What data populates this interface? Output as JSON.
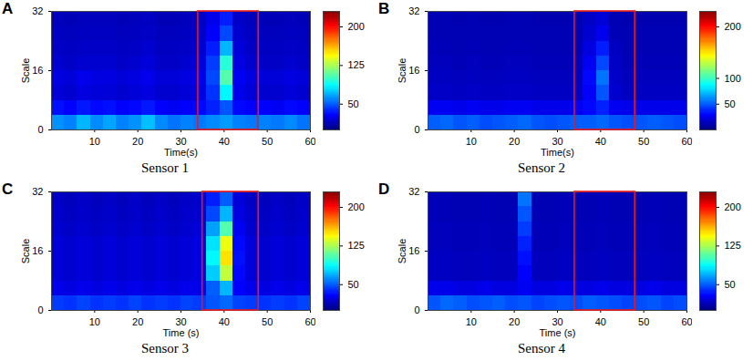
{
  "chart_data": [
    {
      "type": "heatmap",
      "panel_label": "A",
      "caption": "Sensor 1",
      "xlabel": "Time(s)",
      "ylabel": "Scale",
      "xlim": [
        0,
        60
      ],
      "xticks": [
        10,
        20,
        30,
        40,
        50,
        60
      ],
      "ylim": [
        0,
        32
      ],
      "yticks": [
        0,
        16,
        32
      ],
      "time_edges": [
        0,
        3,
        6,
        9,
        12,
        15,
        18,
        21,
        24,
        27,
        30,
        33,
        36,
        39,
        42,
        45,
        48,
        51,
        54,
        57,
        60
      ],
      "scale_edges": [
        0,
        4,
        8,
        12,
        16,
        20,
        24,
        28,
        32
      ],
      "cells": [
        [
          62,
          58,
          70,
          60,
          66,
          58,
          62,
          72,
          60,
          55,
          58,
          56,
          60,
          64,
          58,
          56,
          58,
          56,
          60,
          55
        ],
        [
          32,
          28,
          34,
          30,
          32,
          28,
          30,
          34,
          28,
          26,
          28,
          30,
          36,
          48,
          30,
          28,
          28,
          26,
          30,
          28
        ],
        [
          20,
          18,
          22,
          20,
          20,
          18,
          20,
          22,
          18,
          18,
          20,
          22,
          40,
          85,
          24,
          20,
          18,
          18,
          20,
          18
        ],
        [
          22,
          20,
          24,
          22,
          22,
          20,
          22,
          24,
          20,
          20,
          22,
          24,
          45,
          105,
          26,
          22,
          20,
          20,
          22,
          20
        ],
        [
          18,
          16,
          18,
          18,
          18,
          16,
          18,
          20,
          16,
          16,
          18,
          20,
          42,
          95,
          22,
          18,
          16,
          16,
          18,
          16
        ],
        [
          16,
          15,
          16,
          16,
          16,
          15,
          16,
          18,
          15,
          15,
          16,
          18,
          35,
          70,
          20,
          16,
          15,
          15,
          16,
          15
        ],
        [
          15,
          14,
          15,
          15,
          15,
          14,
          15,
          16,
          14,
          14,
          15,
          16,
          28,
          45,
          18,
          15,
          14,
          14,
          15,
          14
        ],
        [
          14,
          13,
          14,
          14,
          14,
          13,
          14,
          15,
          13,
          13,
          14,
          15,
          24,
          35,
          16,
          14,
          13,
          13,
          14,
          13
        ]
      ],
      "colorbar_lim": [
        0,
        230
      ],
      "colorbar_ticks": [
        50,
        125,
        200
      ],
      "highlight": [
        34,
        48
      ]
    },
    {
      "type": "heatmap",
      "panel_label": "B",
      "caption": "Sensor 2",
      "xlabel": "Time(s)",
      "ylabel": "Scale",
      "xlim": [
        0,
        60
      ],
      "xticks": [
        10,
        20,
        30,
        40,
        50,
        60
      ],
      "ylim": [
        0,
        32
      ],
      "yticks": [
        0,
        16,
        32
      ],
      "time_edges": [
        0,
        3,
        6,
        9,
        12,
        15,
        18,
        21,
        24,
        27,
        30,
        33,
        36,
        39,
        42,
        45,
        48,
        51,
        54,
        57,
        60
      ],
      "scale_edges": [
        0,
        4,
        8,
        12,
        16,
        20,
        24,
        28,
        32
      ],
      "cells": [
        [
          50,
          52,
          48,
          50,
          46,
          48,
          50,
          52,
          48,
          46,
          48,
          50,
          50,
          52,
          48,
          46,
          48,
          50,
          48,
          46
        ],
        [
          26,
          26,
          24,
          26,
          24,
          24,
          26,
          26,
          24,
          24,
          24,
          26,
          30,
          36,
          26,
          24,
          24,
          24,
          24,
          24
        ],
        [
          16,
          16,
          15,
          16,
          15,
          15,
          16,
          16,
          15,
          15,
          15,
          16,
          28,
          48,
          18,
          15,
          15,
          15,
          15,
          15
        ],
        [
          15,
          15,
          14,
          15,
          14,
          14,
          15,
          15,
          14,
          14,
          14,
          15,
          30,
          55,
          17,
          14,
          14,
          14,
          14,
          14
        ],
        [
          14,
          14,
          13,
          14,
          13,
          13,
          14,
          14,
          13,
          13,
          13,
          14,
          26,
          45,
          16,
          13,
          13,
          13,
          13,
          13
        ],
        [
          13,
          13,
          12,
          13,
          12,
          12,
          13,
          13,
          12,
          12,
          12,
          13,
          22,
          35,
          15,
          12,
          12,
          12,
          12,
          12
        ],
        [
          12,
          12,
          12,
          12,
          12,
          12,
          12,
          12,
          12,
          12,
          12,
          12,
          18,
          25,
          13,
          12,
          12,
          12,
          12,
          12
        ],
        [
          12,
          12,
          11,
          12,
          11,
          11,
          12,
          12,
          11,
          11,
          11,
          12,
          16,
          20,
          12,
          11,
          11,
          11,
          11,
          11
        ]
      ],
      "colorbar_lim": [
        0,
        230
      ],
      "colorbar_ticks": [
        50,
        100,
        200
      ],
      "highlight": [
        34,
        48
      ]
    },
    {
      "type": "heatmap",
      "panel_label": "C",
      "caption": "Sensor 3",
      "xlabel": "Time (s)",
      "ylabel": "Scale",
      "xlim": [
        0,
        60
      ],
      "xticks": [
        10,
        20,
        30,
        40,
        50,
        60
      ],
      "ylim": [
        0,
        32
      ],
      "yticks": [
        0,
        16,
        32
      ],
      "time_edges": [
        0,
        3,
        6,
        9,
        12,
        15,
        18,
        21,
        24,
        27,
        30,
        33,
        36,
        39,
        42,
        45,
        48,
        51,
        54,
        57,
        60
      ],
      "scale_edges": [
        0,
        4,
        8,
        12,
        16,
        20,
        24,
        28,
        32
      ],
      "cells": [
        [
          42,
          40,
          44,
          40,
          42,
          40,
          44,
          40,
          42,
          40,
          44,
          42,
          48,
          52,
          44,
          42,
          40,
          42,
          40,
          44
        ],
        [
          24,
          22,
          24,
          22,
          24,
          22,
          24,
          22,
          24,
          22,
          24,
          24,
          50,
          70,
          28,
          24,
          22,
          24,
          22,
          24
        ],
        [
          20,
          18,
          20,
          18,
          20,
          18,
          20,
          18,
          20,
          18,
          20,
          22,
          75,
          130,
          30,
          20,
          18,
          20,
          18,
          20
        ],
        [
          20,
          18,
          20,
          18,
          20,
          18,
          20,
          18,
          20,
          18,
          20,
          22,
          85,
          150,
          32,
          20,
          18,
          20,
          18,
          20
        ],
        [
          20,
          18,
          20,
          18,
          20,
          18,
          20,
          18,
          20,
          18,
          20,
          22,
          80,
          140,
          30,
          20,
          18,
          20,
          18,
          20
        ],
        [
          18,
          16,
          18,
          16,
          18,
          16,
          18,
          16,
          18,
          16,
          18,
          20,
          65,
          105,
          26,
          18,
          16,
          18,
          16,
          18
        ],
        [
          17,
          15,
          17,
          15,
          17,
          15,
          17,
          15,
          17,
          15,
          17,
          18,
          45,
          70,
          22,
          17,
          15,
          17,
          15,
          17
        ],
        [
          16,
          14,
          16,
          14,
          16,
          14,
          16,
          14,
          16,
          14,
          16,
          17,
          35,
          50,
          20,
          16,
          14,
          16,
          14,
          16
        ]
      ],
      "colorbar_lim": [
        0,
        230
      ],
      "colorbar_ticks": [
        50,
        125,
        200
      ],
      "highlight": [
        35,
        48
      ]
    },
    {
      "type": "heatmap",
      "panel_label": "D",
      "caption": "Sensor 4",
      "xlabel": "Time (s)",
      "ylabel": "Scale",
      "xlim": [
        0,
        60
      ],
      "xticks": [
        10,
        20,
        30,
        40,
        50,
        60
      ],
      "ylim": [
        0,
        32
      ],
      "yticks": [
        0,
        16,
        32
      ],
      "time_edges": [
        0,
        3,
        6,
        9,
        12,
        15,
        18,
        21,
        24,
        27,
        30,
        33,
        36,
        39,
        42,
        45,
        48,
        51,
        54,
        57,
        60
      ],
      "scale_edges": [
        0,
        4,
        8,
        12,
        16,
        20,
        24,
        28,
        32
      ],
      "cells": [
        [
          48,
          52,
          50,
          46,
          48,
          50,
          46,
          48,
          44,
          46,
          48,
          46,
          50,
          48,
          46,
          44,
          46,
          48,
          44,
          46
        ],
        [
          24,
          24,
          22,
          22,
          24,
          22,
          22,
          26,
          22,
          22,
          24,
          22,
          22,
          24,
          22,
          22,
          22,
          24,
          22,
          22
        ],
        [
          15,
          15,
          14,
          14,
          15,
          14,
          14,
          28,
          14,
          14,
          15,
          14,
          14,
          15,
          14,
          14,
          14,
          15,
          14,
          14
        ],
        [
          15,
          15,
          14,
          14,
          15,
          14,
          14,
          32,
          14,
          14,
          15,
          14,
          14,
          15,
          14,
          14,
          14,
          15,
          14,
          14
        ],
        [
          14,
          14,
          13,
          13,
          14,
          13,
          13,
          36,
          13,
          13,
          14,
          13,
          13,
          14,
          13,
          13,
          13,
          14,
          13,
          13
        ],
        [
          14,
          14,
          13,
          13,
          14,
          13,
          13,
          42,
          13,
          13,
          14,
          13,
          13,
          14,
          13,
          13,
          13,
          14,
          13,
          13
        ],
        [
          13,
          13,
          12,
          12,
          13,
          12,
          12,
          48,
          12,
          12,
          13,
          12,
          12,
          13,
          12,
          12,
          12,
          13,
          12,
          12
        ],
        [
          13,
          13,
          12,
          12,
          13,
          12,
          12,
          55,
          12,
          12,
          13,
          12,
          12,
          13,
          12,
          12,
          12,
          13,
          12,
          12
        ]
      ],
      "colorbar_lim": [
        0,
        230
      ],
      "colorbar_ticks": [
        50,
        125,
        200
      ],
      "highlight": [
        34,
        48
      ]
    }
  ]
}
